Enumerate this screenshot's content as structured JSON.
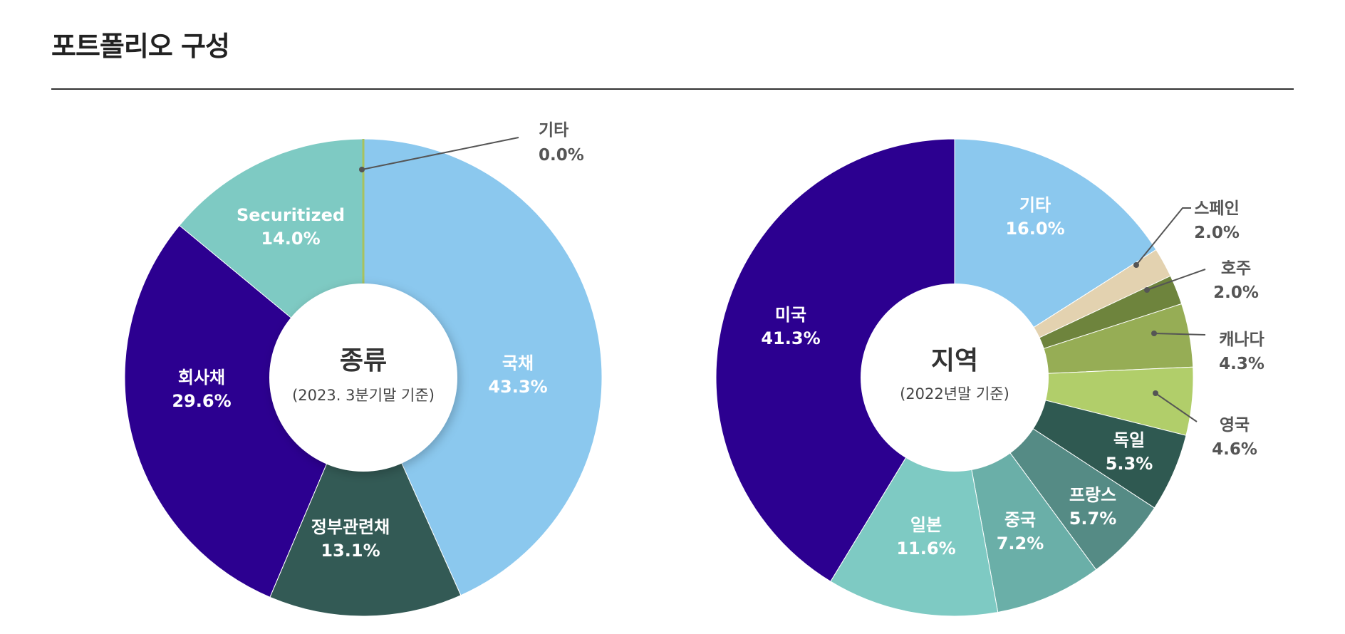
{
  "page": {
    "title": "포트폴리오 구성"
  },
  "chart_data": [
    {
      "type": "pie",
      "center_title": "종류",
      "center_subtitle": "(2023. 3분기말 기준)",
      "slices": [
        {
          "label": "국채",
          "value": 43.3,
          "display": "43.3%",
          "color": "#8BC8EE",
          "label_color": "#ffffff"
        },
        {
          "label": "정부관련채",
          "value": 13.1,
          "display": "13.1%",
          "color": "#335A55",
          "label_color": "#ffffff"
        },
        {
          "label": "회사채",
          "value": 29.6,
          "display": "29.6%",
          "color": "#2C0090",
          "label_color": "#ffffff"
        },
        {
          "label": "Securitized",
          "value": 14.0,
          "display": "14.0%",
          "color": "#7ECAC3",
          "label_color": "#ffffff"
        },
        {
          "label": "기타",
          "value": 0.0,
          "display": "0.0%",
          "color": "#A8C25E",
          "label_color": "#555555",
          "callout": true
        }
      ]
    },
    {
      "type": "pie",
      "center_title": "지역",
      "center_subtitle": "(2022년말 기준)",
      "slices": [
        {
          "label": "기타",
          "value": 16.0,
          "display": "16.0%",
          "color": "#8BC8EE",
          "label_color": "#ffffff"
        },
        {
          "label": "스페인",
          "value": 2.0,
          "display": "2.0%",
          "color": "#E3D2B0",
          "label_color": "#555555",
          "callout": true
        },
        {
          "label": "호주",
          "value": 2.0,
          "display": "2.0%",
          "color": "#6E843D",
          "label_color": "#555555",
          "callout": true
        },
        {
          "label": "캐나다",
          "value": 4.3,
          "display": "4.3%",
          "color": "#96AD55",
          "label_color": "#555555",
          "callout": true
        },
        {
          "label": "영국",
          "value": 4.6,
          "display": "4.6%",
          "color": "#B1CE6A",
          "label_color": "#555555",
          "callout": true
        },
        {
          "label": "독일",
          "value": 5.3,
          "display": "5.3%",
          "color": "#2F5951",
          "label_color": "#ffffff"
        },
        {
          "label": "프랑스",
          "value": 5.7,
          "display": "5.7%",
          "color": "#558B85",
          "label_color": "#ffffff"
        },
        {
          "label": "중국",
          "value": 7.2,
          "display": "7.2%",
          "color": "#6AAFA8",
          "label_color": "#ffffff"
        },
        {
          "label": "일본",
          "value": 11.6,
          "display": "11.6%",
          "color": "#7ECAC3",
          "label_color": "#ffffff"
        },
        {
          "label": "미국",
          "value": 41.3,
          "display": "41.3%",
          "color": "#2C0090",
          "label_color": "#ffffff"
        }
      ]
    }
  ]
}
